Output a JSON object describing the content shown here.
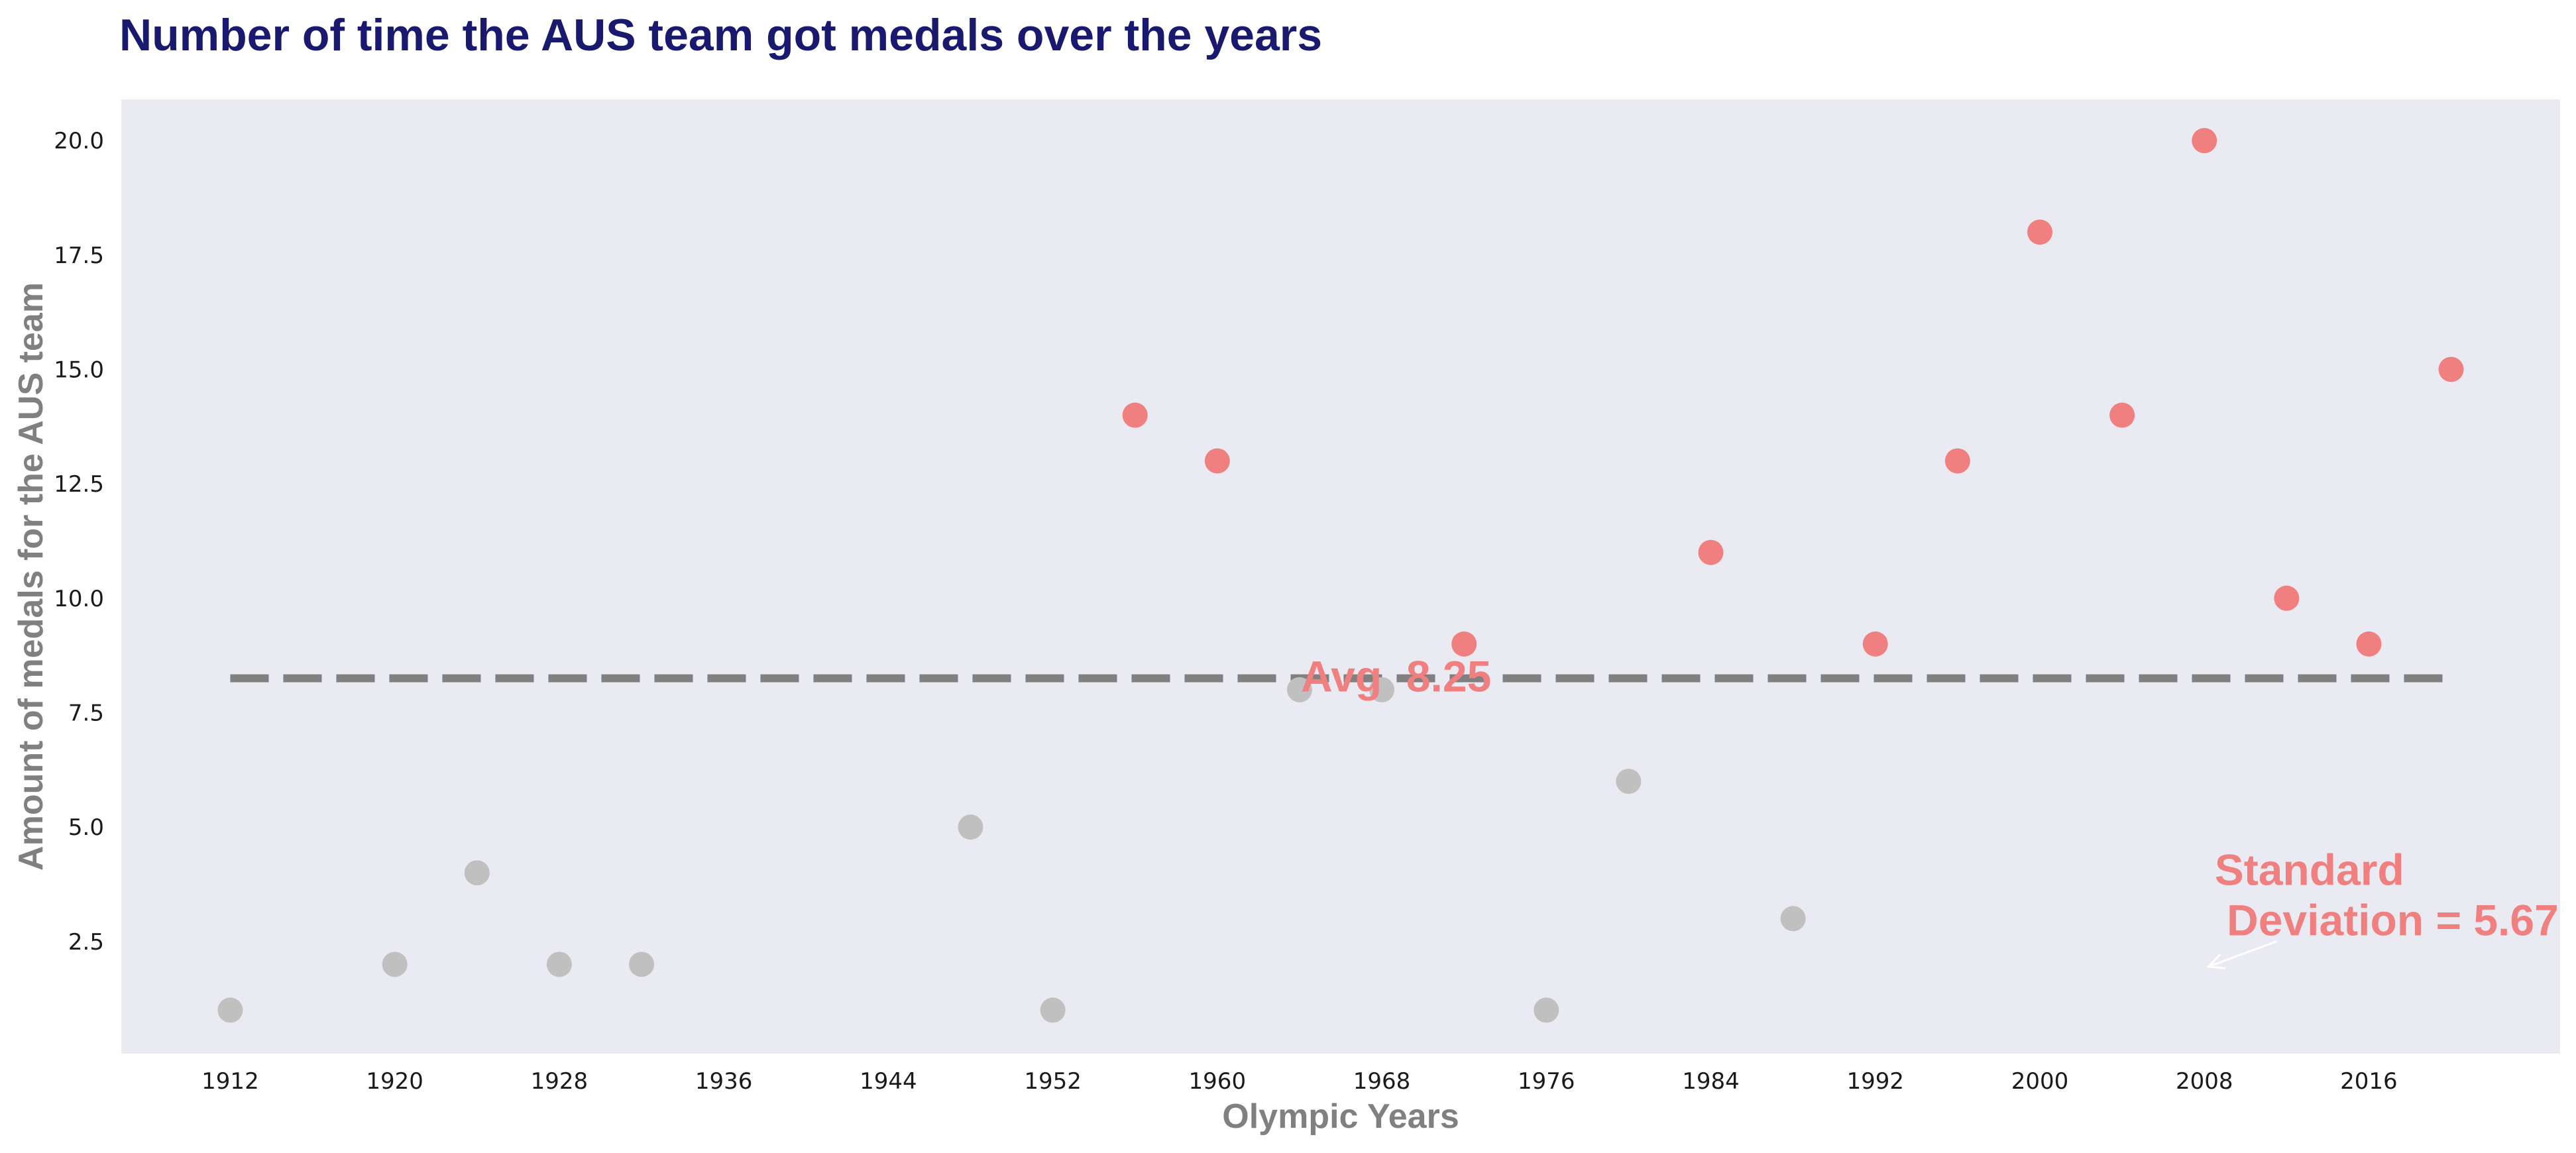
{
  "chart_data": {
    "type": "scatter",
    "title": "Number of time the AUS team got medals over the years",
    "xlabel": "Olympic Years",
    "ylabel": "Amount of medals for the AUS team",
    "x_ticks": [
      1912,
      1920,
      1928,
      1936,
      1944,
      1952,
      1960,
      1968,
      1976,
      1984,
      1992,
      2000,
      2008,
      2016
    ],
    "y_ticks": [
      "2.5",
      "5.0",
      "7.5",
      "10.0",
      "12.5",
      "15.0",
      "17.5",
      "20.0"
    ],
    "xlim": [
      1906.7,
      2025.3
    ],
    "ylim": [
      0.05,
      20.9
    ],
    "grid": false,
    "points": [
      {
        "x": 1912,
        "y": 1
      },
      {
        "x": 1920,
        "y": 2
      },
      {
        "x": 1924,
        "y": 4
      },
      {
        "x": 1928,
        "y": 2
      },
      {
        "x": 1932,
        "y": 2
      },
      {
        "x": 1948,
        "y": 5
      },
      {
        "x": 1952,
        "y": 1
      },
      {
        "x": 1956,
        "y": 14
      },
      {
        "x": 1960,
        "y": 13
      },
      {
        "x": 1964,
        "y": 8
      },
      {
        "x": 1968,
        "y": 8
      },
      {
        "x": 1972,
        "y": 9
      },
      {
        "x": 1976,
        "y": 1
      },
      {
        "x": 1980,
        "y": 6
      },
      {
        "x": 1984,
        "y": 11
      },
      {
        "x": 1988,
        "y": 3
      },
      {
        "x": 1992,
        "y": 9
      },
      {
        "x": 1996,
        "y": 13
      },
      {
        "x": 2000,
        "y": 18
      },
      {
        "x": 2004,
        "y": 14
      },
      {
        "x": 2008,
        "y": 20
      },
      {
        "x": 2012,
        "y": 10
      },
      {
        "x": 2016,
        "y": 9
      },
      {
        "x": 2020,
        "y": 15
      }
    ],
    "average": 8.25,
    "avg_label": "Avg  8.25",
    "std_label_line1": "Standard",
    "std_label_line2": " Deviation = 5.67",
    "colors": {
      "above_avg": "#f08080",
      "below_avg": "#c0c0c0",
      "avg_line": "#808080",
      "plot_bg": "#eaeaf2",
      "title": "#191970",
      "annotation": "#f08080",
      "arrow": "#ffffff"
    }
  }
}
